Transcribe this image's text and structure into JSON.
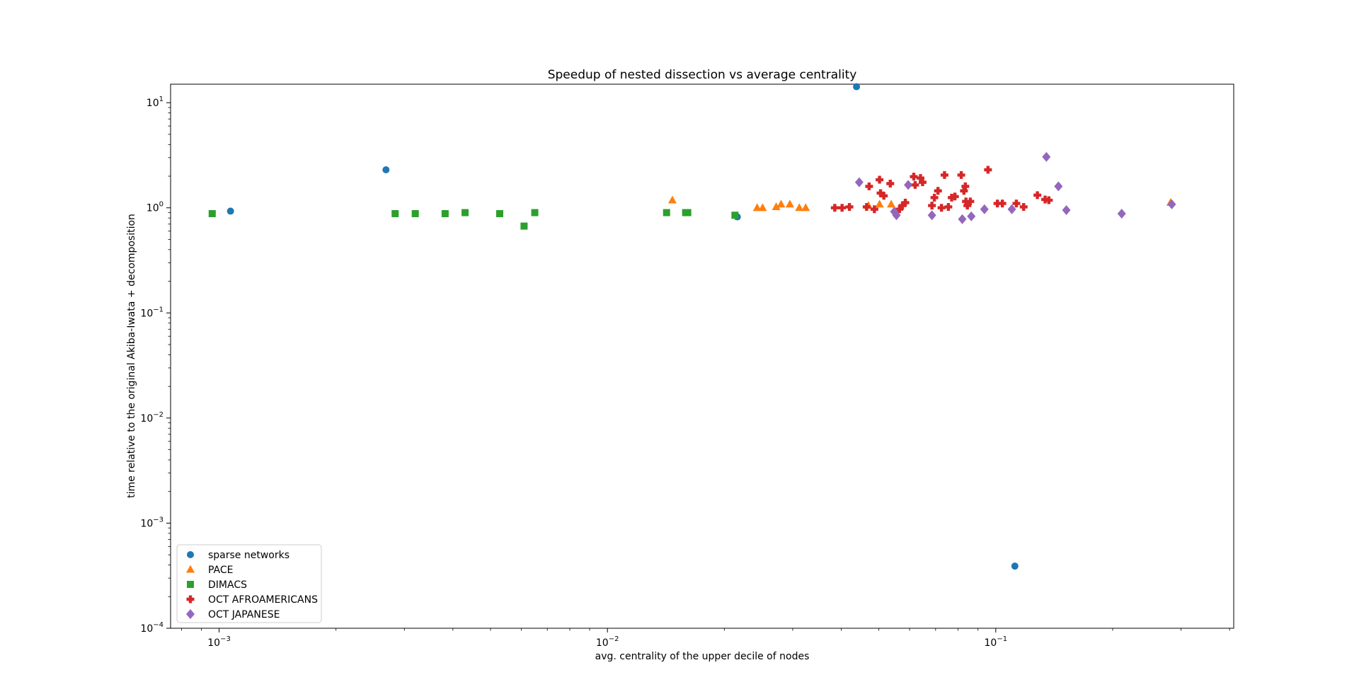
{
  "chart_data": {
    "type": "scatter",
    "title": "Speedup of nested dissection vs average centrality",
    "xlabel": "avg. centrality of the upper decile of nodes",
    "ylabel": "time relative to the original Akiba-Iwata + decomposition",
    "xscale": "log",
    "yscale": "log",
    "xlim": [
      0.00075,
      0.41
    ],
    "ylim": [
      0.0001,
      15
    ],
    "grid": false,
    "legend_position": "lower-left",
    "x_ticks": [
      {
        "value": 0.001,
        "label_base": "10",
        "label_exp": "−3"
      },
      {
        "value": 0.01,
        "label_base": "10",
        "label_exp": "−2"
      },
      {
        "value": 0.1,
        "label_base": "10",
        "label_exp": "−1"
      }
    ],
    "y_ticks": [
      {
        "value": 0.0001,
        "label_base": "10",
        "label_exp": "−4"
      },
      {
        "value": 0.001,
        "label_base": "10",
        "label_exp": "−3"
      },
      {
        "value": 0.01,
        "label_base": "10",
        "label_exp": "−2"
      },
      {
        "value": 0.1,
        "label_base": "10",
        "label_exp": "−1"
      },
      {
        "value": 1,
        "label_base": "10",
        "label_exp": "0"
      },
      {
        "value": 10,
        "label_base": "10",
        "label_exp": "1"
      }
    ],
    "series": [
      {
        "name": "sparse networks",
        "marker": "circle",
        "color": "#1f77b4",
        "points": [
          [
            0.00107,
            0.93
          ],
          [
            0.00269,
            2.3
          ],
          [
            0.0216,
            0.82
          ],
          [
            0.0438,
            14.2
          ],
          [
            0.112,
            0.00039
          ]
        ]
      },
      {
        "name": "PACE",
        "marker": "triangle",
        "color": "#ff7f0e",
        "points": [
          [
            0.0147,
            1.18
          ],
          [
            0.0243,
            1.0
          ],
          [
            0.0251,
            1.0
          ],
          [
            0.0272,
            1.02
          ],
          [
            0.028,
            1.08
          ],
          [
            0.0295,
            1.08
          ],
          [
            0.0312,
            1.0
          ],
          [
            0.0324,
            1.0
          ],
          [
            0.047,
            1.05
          ],
          [
            0.0502,
            1.08
          ],
          [
            0.0538,
            1.08
          ],
          [
            0.282,
            1.12
          ]
        ]
      },
      {
        "name": "DIMACS",
        "marker": "square",
        "color": "#2ca02c",
        "points": [
          [
            0.00096,
            0.88
          ],
          [
            0.00284,
            0.88
          ],
          [
            0.0032,
            0.88
          ],
          [
            0.00382,
            0.88
          ],
          [
            0.0043,
            0.9
          ],
          [
            0.00528,
            0.88
          ],
          [
            0.0061,
            0.67
          ],
          [
            0.0065,
            0.9
          ],
          [
            0.0142,
            0.9
          ],
          [
            0.0159,
            0.9
          ],
          [
            0.0161,
            0.9
          ],
          [
            0.0213,
            0.85
          ]
        ]
      },
      {
        "name": "OCT AFROAMERICANS",
        "marker": "plus",
        "color": "#d62728",
        "points": [
          [
            0.0385,
            1.0
          ],
          [
            0.0402,
            1.0
          ],
          [
            0.042,
            1.02
          ],
          [
            0.0465,
            1.02
          ],
          [
            0.0472,
            1.6
          ],
          [
            0.0487,
            0.97
          ],
          [
            0.0502,
            1.85
          ],
          [
            0.0505,
            1.38
          ],
          [
            0.0515,
            1.3
          ],
          [
            0.0535,
            1.7
          ],
          [
            0.0565,
            0.97
          ],
          [
            0.0575,
            1.05
          ],
          [
            0.0585,
            1.12
          ],
          [
            0.0615,
            1.98
          ],
          [
            0.062,
            1.65
          ],
          [
            0.064,
            1.92
          ],
          [
            0.0648,
            1.75
          ],
          [
            0.0685,
            1.05
          ],
          [
            0.0695,
            1.25
          ],
          [
            0.071,
            1.45
          ],
          [
            0.0725,
            1.0
          ],
          [
            0.0738,
            2.05
          ],
          [
            0.0755,
            1.02
          ],
          [
            0.077,
            1.25
          ],
          [
            0.0785,
            1.28
          ],
          [
            0.0815,
            2.05
          ],
          [
            0.0828,
            1.45
          ],
          [
            0.0835,
            1.6
          ],
          [
            0.0838,
            1.15
          ],
          [
            0.0845,
            1.05
          ],
          [
            0.086,
            1.15
          ],
          [
            0.0955,
            2.3
          ],
          [
            0.101,
            1.1
          ],
          [
            0.104,
            1.1
          ],
          [
            0.113,
            1.1
          ],
          [
            0.118,
            1.02
          ],
          [
            0.128,
            1.32
          ],
          [
            0.134,
            1.2
          ],
          [
            0.137,
            1.18
          ]
        ]
      },
      {
        "name": "OCT JAPANESE",
        "marker": "diamond",
        "color": "#9467bd",
        "points": [
          [
            0.0445,
            1.75
          ],
          [
            0.0548,
            0.92
          ],
          [
            0.0555,
            0.85
          ],
          [
            0.0595,
            1.65
          ],
          [
            0.0685,
            0.85
          ],
          [
            0.082,
            0.78
          ],
          [
            0.0865,
            0.83
          ],
          [
            0.0935,
            0.97
          ],
          [
            0.11,
            0.97
          ],
          [
            0.135,
            3.05
          ],
          [
            0.145,
            1.6
          ],
          [
            0.152,
            0.95
          ],
          [
            0.211,
            0.88
          ],
          [
            0.284,
            1.08
          ]
        ]
      }
    ]
  }
}
